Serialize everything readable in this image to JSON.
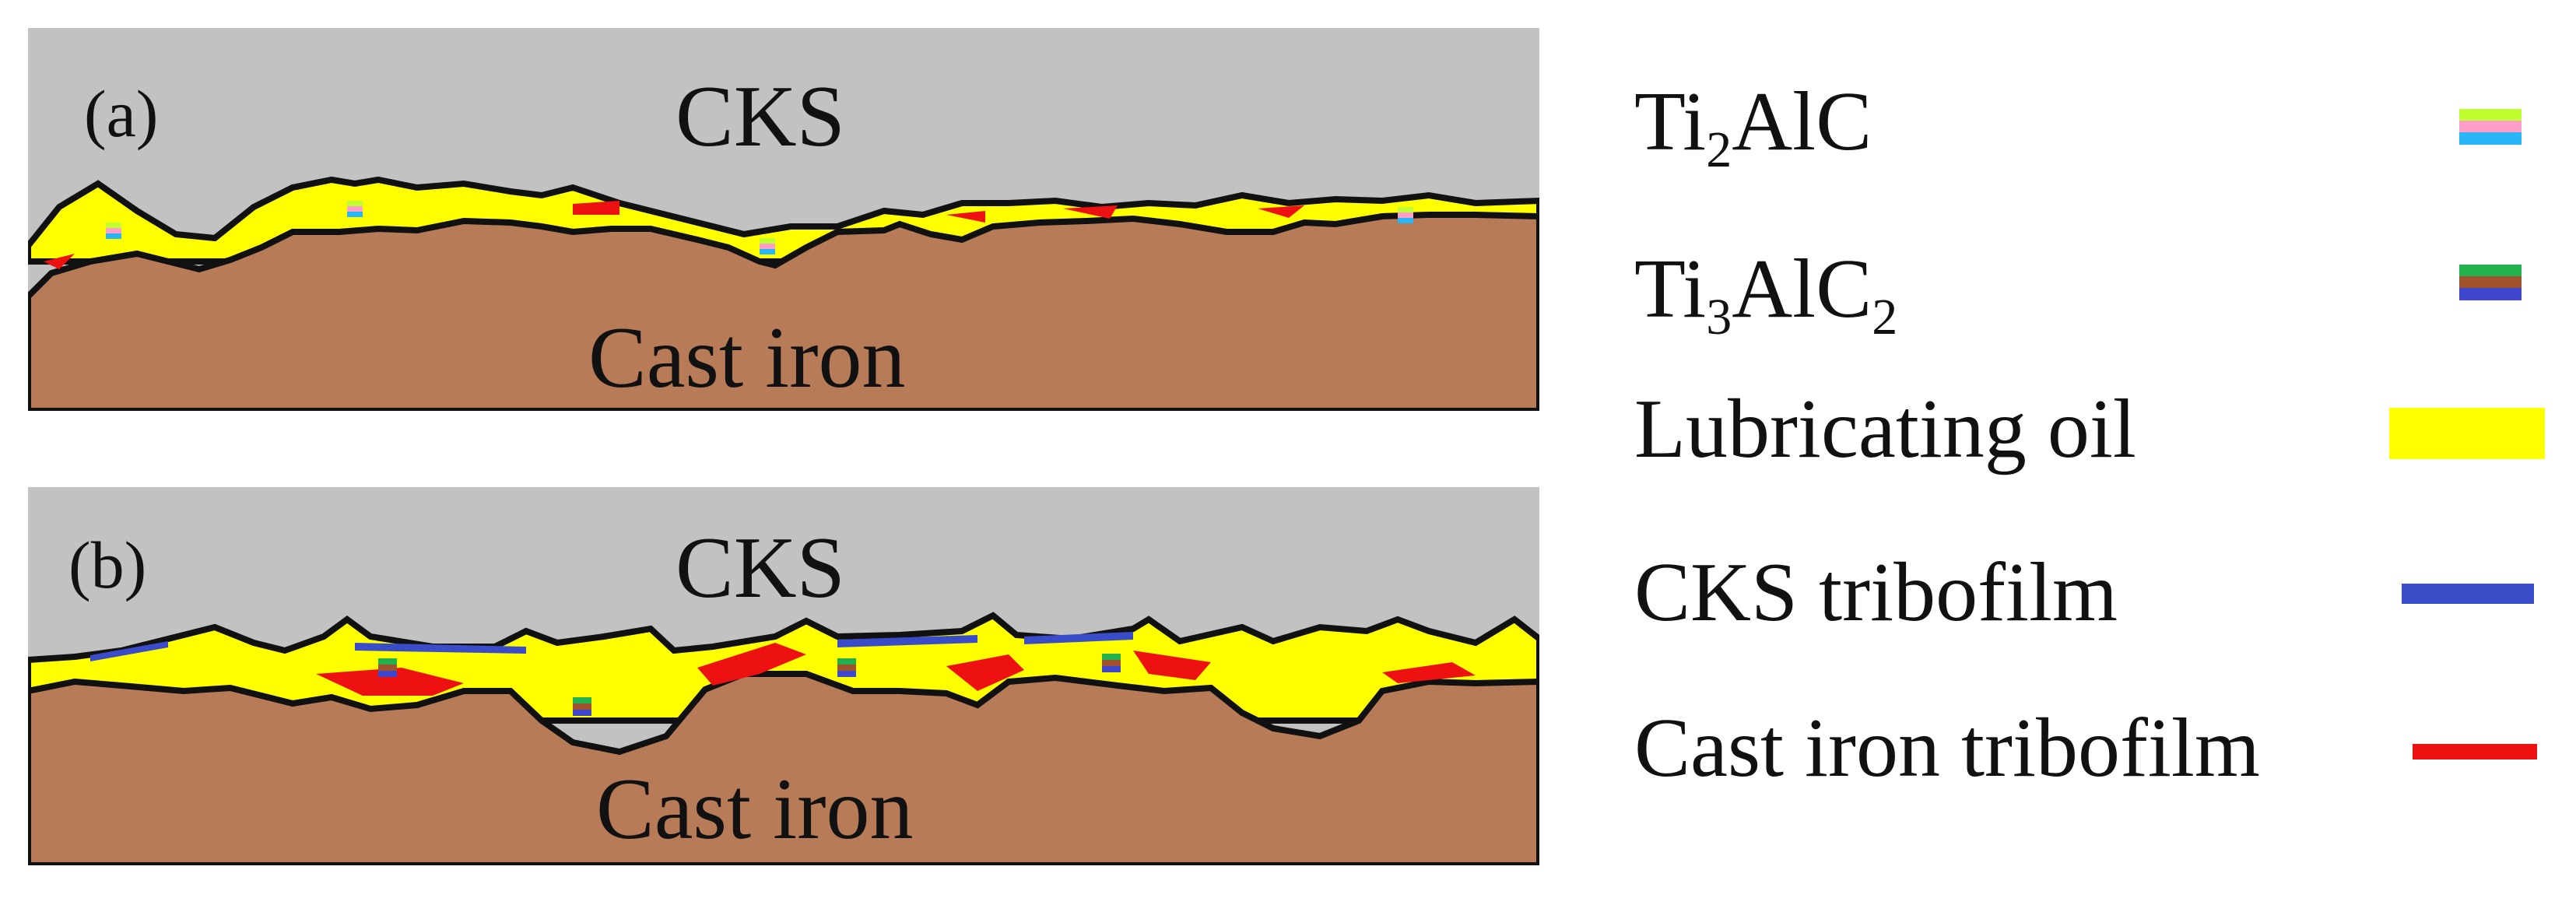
{
  "colors": {
    "cks": "#c2c2c2",
    "cast_iron": "#b87b57",
    "lubricating_oil": "#ffff00",
    "cks_tribofilm": "#3b4cc9",
    "cast_iron_tribofilm": "#ee1111",
    "outline": "#111111",
    "ti2alc": [
      "#bfff30",
      "#ff9fc9",
      "#29b6f6"
    ],
    "ti3alc2": [
      "#22b14c",
      "#a0522d",
      "#3f48cc"
    ]
  },
  "panels": [
    {
      "tag": "(a)",
      "top_label": "CKS",
      "bottom_label": "Cast iron"
    },
    {
      "tag": "(b)",
      "top_label": "CKS",
      "bottom_label": "Cast iron"
    }
  ],
  "legend": [
    {
      "base": "Ti",
      "sub1": "2",
      "mid": "AlC",
      "sub2": "",
      "swatch": "ti2alc-icon"
    },
    {
      "base": "Ti",
      "sub1": "3",
      "mid": "AlC",
      "sub2": "2",
      "swatch": "ti3alc2-icon"
    },
    {
      "text": "Lubricating oil",
      "swatch": "lubricating-oil-swatch"
    },
    {
      "text": "CKS tribofilm",
      "swatch": "cks-tribofilm-swatch"
    },
    {
      "text": "Cast iron tribofilm",
      "swatch": "cast-iron-tribofilm-swatch"
    }
  ]
}
